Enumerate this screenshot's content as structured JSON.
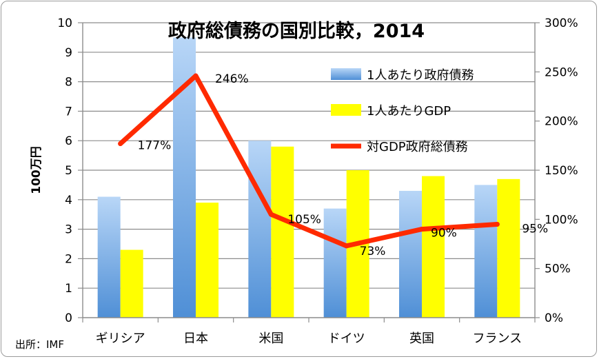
{
  "chart_data": {
    "type": "bar",
    "title": "政府総債務の国別比較，2014",
    "ylabel": "100万円",
    "y2label": "",
    "source": "出所：IMF",
    "categories": [
      "ギリシア",
      "日本",
      "米国",
      "ドイツ",
      "英国",
      "フランス"
    ],
    "ylim": [
      0,
      10
    ],
    "yticks": [
      "0",
      "1",
      "2",
      "3",
      "4",
      "5",
      "6",
      "7",
      "8",
      "9",
      "10"
    ],
    "y2lim": [
      0,
      300
    ],
    "y2ticks": [
      "0%",
      "50%",
      "100%",
      "150%",
      "200%",
      "250%",
      "300%"
    ],
    "grid": true,
    "legend_position": "top-right",
    "series": [
      {
        "name": "1人あたり政府債務",
        "kind": "bar",
        "color": "#5b9bd5",
        "values": [
          4.1,
          9.5,
          6.0,
          3.7,
          4.3,
          4.5
        ]
      },
      {
        "name": "1人あたりGDP",
        "kind": "bar",
        "color": "#ffff00",
        "values": [
          2.3,
          3.9,
          5.8,
          5.0,
          4.8,
          4.7
        ]
      },
      {
        "name": "対GDP政府総債務",
        "kind": "line",
        "axis": "right",
        "color": "#ff2a00",
        "values": [
          177,
          246,
          105,
          73,
          90,
          95
        ],
        "labels": [
          "177%",
          "246%",
          "105%",
          "73%",
          "90%",
          "95%"
        ]
      }
    ]
  }
}
